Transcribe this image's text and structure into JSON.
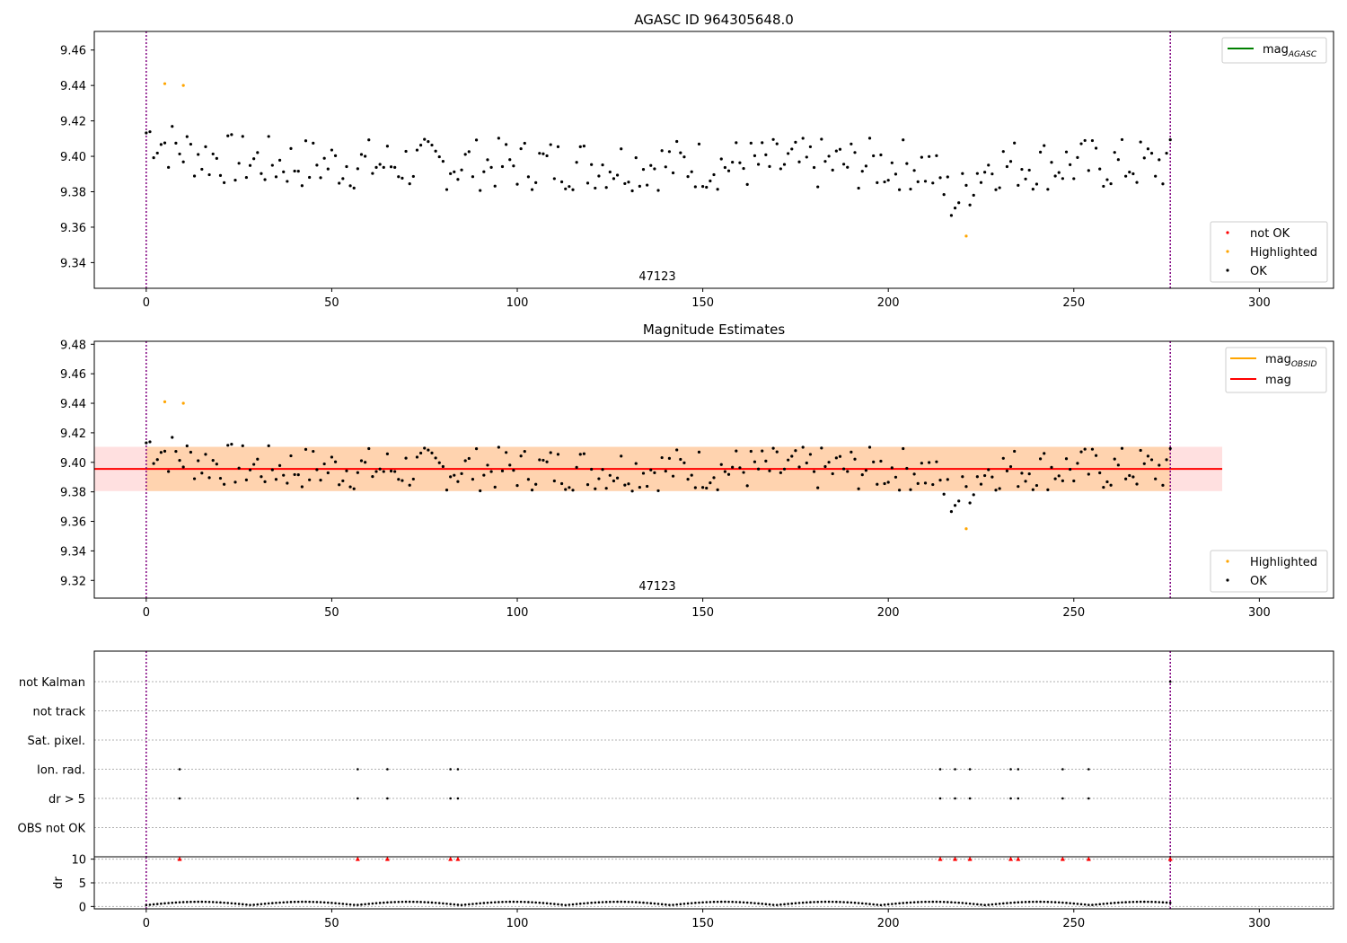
{
  "chart_data": [
    {
      "type": "scatter",
      "title": "AGASC ID 964305648.0",
      "xlim": [
        -14,
        320
      ],
      "ylim": [
        9.3255,
        9.4705
      ],
      "x_ticks": [
        0,
        50,
        100,
        150,
        200,
        250,
        300
      ],
      "y_ticks": [
        9.34,
        9.36,
        9.38,
        9.4,
        9.42,
        9.44,
        9.46
      ],
      "y_tick_labels": [
        "9.34",
        "9.36",
        "9.38",
        "9.40",
        "9.42",
        "9.44",
        "9.46"
      ],
      "vlines": [
        0,
        276
      ],
      "obsid_label": "47123",
      "legend_upper": [
        {
          "name": "mag",
          "subscript": "AGASC",
          "color": "#008000",
          "kind": "line"
        }
      ],
      "legend_lower": [
        {
          "name": "not OK",
          "color": "#ff0000",
          "kind": "marker"
        },
        {
          "name": "Highlighted",
          "color": "#ffa500",
          "kind": "marker"
        },
        {
          "name": "OK",
          "color": "#000000",
          "kind": "marker"
        }
      ],
      "series_highlighted": {
        "x": [
          5,
          10,
          221
        ],
        "y": [
          9.441,
          9.44,
          9.355
        ]
      }
    },
    {
      "type": "scatter",
      "title": "Magnitude Estimates",
      "xlim": [
        -14,
        320
      ],
      "ylim": [
        9.308,
        9.482
      ],
      "x_ticks": [
        0,
        50,
        100,
        150,
        200,
        250,
        300
      ],
      "y_ticks": [
        9.32,
        9.34,
        9.36,
        9.38,
        9.4,
        9.42,
        9.44,
        9.46,
        9.48
      ],
      "y_tick_labels": [
        "9.32",
        "9.34",
        "9.36",
        "9.38",
        "9.40",
        "9.42",
        "9.44",
        "9.46",
        "9.48"
      ],
      "vlines": [
        0,
        276
      ],
      "obsid_label": "47123",
      "mag_line": 9.3955,
      "band_mag": [
        9.3805,
        9.4105
      ],
      "band_obsid": [
        9.3805,
        9.4105
      ],
      "band_mag_xrange": [
        -14,
        290
      ],
      "band_obsid_xrange": [
        0,
        276
      ],
      "legend_upper": [
        {
          "name": "mag",
          "subscript": "OBSID",
          "color": "#ffa500",
          "kind": "line"
        },
        {
          "name": "mag",
          "subscript": "",
          "color": "#ff0000",
          "kind": "line"
        }
      ],
      "legend_lower": [
        {
          "name": "Highlighted",
          "color": "#ffa500",
          "kind": "marker"
        },
        {
          "name": "OK",
          "color": "#000000",
          "kind": "marker"
        }
      ],
      "series_highlighted": {
        "x": [
          5,
          10,
          221
        ],
        "y": [
          9.441,
          9.44,
          9.355
        ]
      }
    },
    {
      "type": "scatter",
      "title": "",
      "xlim": [
        -14,
        320
      ],
      "x_ticks": [
        0,
        50,
        100,
        150,
        200,
        250,
        300
      ],
      "flag_rows": [
        "not Kalman",
        "not track",
        "Sat. pixel.",
        "Ion. rad.",
        "dr > 5",
        "OBS not OK"
      ],
      "flags": {
        "Ion. rad.": [
          9,
          57,
          65,
          82,
          84,
          214,
          218,
          222,
          233,
          235,
          247,
          254
        ],
        "dr > 5": [
          9,
          57,
          65,
          82,
          84,
          214,
          218,
          222,
          233,
          235,
          247,
          254
        ],
        "not Kalman": [
          276
        ]
      },
      "vlines": [
        0,
        276
      ]
    },
    {
      "type": "scatter",
      "title": "",
      "ylabel": "dr",
      "xlim": [
        -14,
        320
      ],
      "ylim": [
        -0.5,
        10.5
      ],
      "x_ticks": [
        0,
        50,
        100,
        150,
        200,
        250,
        300
      ],
      "y_ticks": [
        0,
        5,
        10
      ],
      "y_tick_labels": [
        "0",
        "5",
        "10"
      ],
      "dr_clipped_x": [
        9,
        57,
        65,
        82,
        84,
        214,
        218,
        222,
        233,
        235,
        247,
        254,
        276
      ],
      "dr_clipped_value": 10,
      "vlines": [
        0,
        276
      ]
    }
  ]
}
